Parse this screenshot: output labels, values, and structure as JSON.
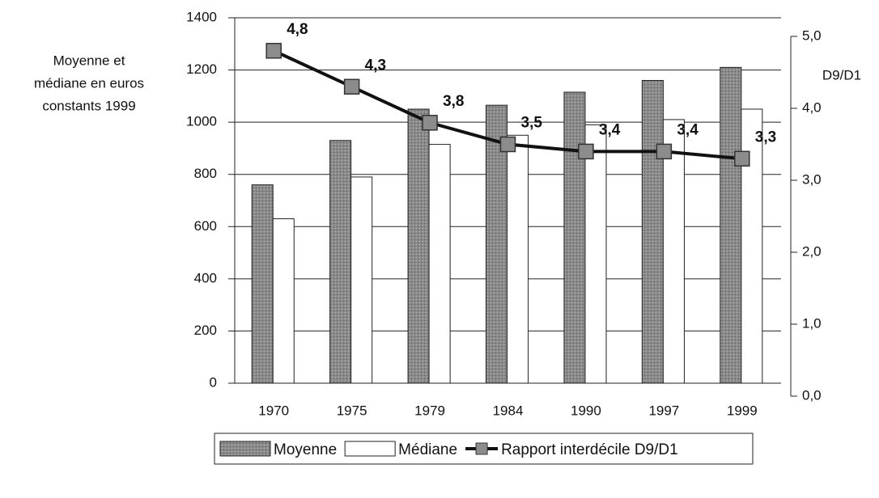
{
  "chart_data": {
    "type": "bar_line",
    "ylabel": [
      "Moyenne et",
      "médiane en euros",
      "constants 1999"
    ],
    "y2label": "D9/D1",
    "categories": [
      "1970",
      "1975",
      "1979",
      "1984",
      "1990",
      "1997",
      "1999"
    ],
    "series": [
      {
        "name": "Moyenne",
        "type": "bar",
        "color": "#8a8a8a",
        "values": [
          760,
          930,
          1050,
          1065,
          1115,
          1160,
          1210
        ]
      },
      {
        "name": "Médiane",
        "type": "bar",
        "color": "#ffffff",
        "values": [
          630,
          790,
          915,
          950,
          990,
          1010,
          1050
        ]
      },
      {
        "name": "Rapport interdécile D9/D1",
        "type": "line",
        "axis": "y2",
        "color": "#111111",
        "marker_color": "#8c8c8c",
        "values": [
          4.8,
          4.3,
          3.8,
          3.5,
          3.4,
          3.4,
          3.3
        ],
        "value_labels": [
          "4,8",
          "4,3",
          "3,8",
          "3,5",
          "3,4",
          "3,4",
          "3,3"
        ]
      }
    ],
    "ylim": [
      0,
      1400
    ],
    "yticks": [
      0,
      200,
      400,
      600,
      800,
      1000,
      1200,
      1400
    ],
    "y2lim": [
      0,
      5
    ],
    "y2ticks": [
      {
        "value": 0,
        "label": "0,0"
      },
      {
        "value": 1,
        "label": "1,0"
      },
      {
        "value": 2,
        "label": "2,0"
      },
      {
        "value": 3,
        "label": "3,0"
      },
      {
        "value": 4,
        "label": "4,0"
      },
      {
        "value": 5,
        "label": "5,0"
      }
    ],
    "grid": true,
    "legend": "bottom"
  }
}
